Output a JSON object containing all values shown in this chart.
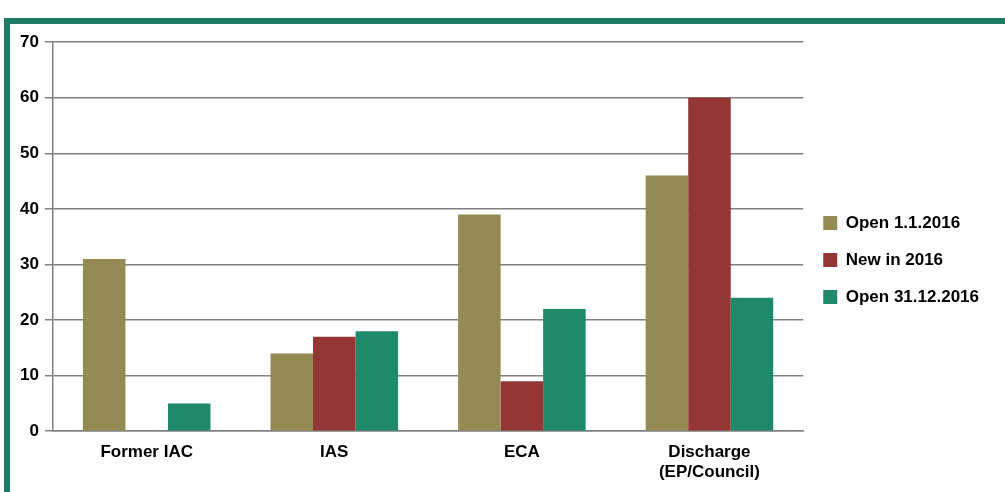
{
  "chart_data": {
    "type": "bar",
    "categories": [
      "Former IAC",
      "IAS",
      "ECA",
      "Discharge (EP/Council)"
    ],
    "series": [
      {
        "name": "Open 1.1.2016",
        "color": "#948a54",
        "values": [
          31,
          14,
          39,
          46
        ]
      },
      {
        "name": "New in 2016",
        "color": "#943634",
        "values": [
          null,
          17,
          9,
          60
        ]
      },
      {
        "name": "Open 31.12.2016",
        "color": "#1f8a6a",
        "values": [
          5,
          18,
          22,
          24
        ]
      }
    ],
    "ylim": [
      0,
      70
    ],
    "yticks": [
      0,
      10,
      20,
      30,
      40,
      50,
      60,
      70
    ],
    "grid": "y",
    "legend": "right"
  }
}
